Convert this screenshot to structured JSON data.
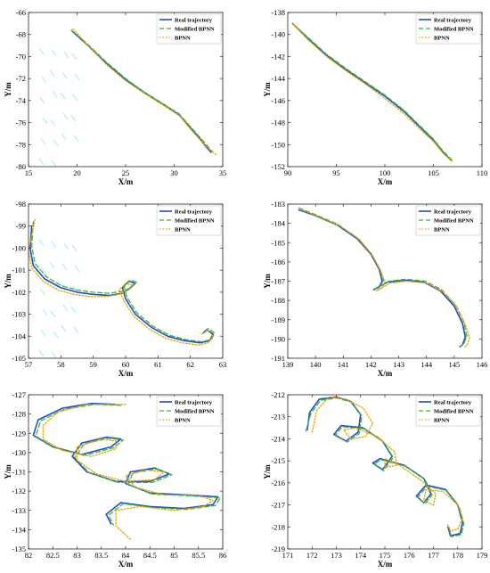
{
  "figure": {
    "legend_labels": [
      "Real trajectory",
      "Modified BPNN",
      "BPNN"
    ],
    "colors": {
      "real": "#1f4fbf",
      "modified": "#3cb43c",
      "bpnn": "#e8a000",
      "artifact": "#9ee8ff"
    }
  },
  "chart_data": [
    {
      "type": "line",
      "xlabel": "X/m",
      "ylabel": "Y/m",
      "xlim": [
        15,
        35
      ],
      "ylim": [
        -80,
        -66
      ],
      "xticks": [
        "15",
        "20",
        "25",
        "30",
        "35"
      ],
      "yticks": [
        "-80",
        "-78",
        "-76",
        "-74",
        "-72",
        "-70",
        "-68",
        "-66"
      ],
      "legend_position": "top-right",
      "grid": false,
      "series": [
        {
          "name": "Real trajectory",
          "x": [
            19.5,
            21,
            23,
            25,
            27,
            29,
            30.5,
            31.5,
            32.5,
            33.2,
            33.8
          ],
          "y": [
            -67.7,
            -68.9,
            -70.6,
            -72.1,
            -73.3,
            -74.4,
            -75.3,
            -76.3,
            -77.3,
            -78.1,
            -78.7
          ]
        },
        {
          "name": "Modified BPNN",
          "x": [
            19.4,
            21,
            23,
            25,
            27,
            29,
            30.5,
            31.5,
            32.5,
            33.3,
            33.9
          ],
          "y": [
            -67.6,
            -68.8,
            -70.5,
            -72.0,
            -73.3,
            -74.4,
            -75.2,
            -76.2,
            -77.2,
            -78.0,
            -78.6
          ]
        },
        {
          "name": "BPNN",
          "x": [
            19.6,
            21,
            23,
            25,
            27,
            29,
            30.6,
            31.6,
            32.6,
            33.5,
            34.3
          ],
          "y": [
            -67.5,
            -68.9,
            -70.7,
            -72.2,
            -73.4,
            -74.5,
            -75.4,
            -76.5,
            -77.5,
            -78.3,
            -78.9
          ]
        }
      ]
    },
    {
      "type": "line",
      "xlabel": "X/m",
      "ylabel": "Y/m",
      "xlim": [
        90,
        110
      ],
      "ylim": [
        -152,
        -138
      ],
      "xticks": [
        "90",
        "95",
        "100",
        "105",
        "110"
      ],
      "yticks": [
        "-152",
        "-150",
        "-148",
        "-146",
        "-144",
        "-142",
        "-140",
        "-138"
      ],
      "legend_position": "top-right",
      "grid": false,
      "series": [
        {
          "name": "Real trajectory",
          "x": [
            90.5,
            92,
            94,
            96,
            98,
            100,
            102,
            103.5,
            105,
            106,
            106.8
          ],
          "y": [
            -139.0,
            -140.3,
            -141.9,
            -143.2,
            -144.4,
            -145.6,
            -147.0,
            -148.3,
            -149.6,
            -150.7,
            -151.4
          ]
        },
        {
          "name": "Modified BPNN",
          "x": [
            90.5,
            92,
            94,
            96,
            98,
            100,
            102,
            103.5,
            105,
            106,
            106.9
          ],
          "y": [
            -139.0,
            -140.2,
            -141.8,
            -143.1,
            -144.3,
            -145.5,
            -146.9,
            -148.2,
            -149.5,
            -150.6,
            -151.4
          ]
        },
        {
          "name": "BPNN",
          "x": [
            90.6,
            92,
            94,
            96,
            98,
            100,
            102,
            103.5,
            105,
            106,
            106.9
          ],
          "y": [
            -139.1,
            -140.4,
            -142.0,
            -143.3,
            -144.5,
            -145.8,
            -147.2,
            -148.5,
            -149.7,
            -150.8,
            -151.5
          ]
        }
      ]
    },
    {
      "type": "line",
      "xlabel": "X/m",
      "ylabel": "Y/m",
      "xlim": [
        57,
        63
      ],
      "ylim": [
        -105,
        -98
      ],
      "xticks": [
        "57",
        "58",
        "59",
        "60",
        "61",
        "62",
        "63"
      ],
      "yticks": [
        "-105",
        "-104",
        "-103",
        "-102",
        "-101",
        "-100",
        "-99",
        "-98"
      ],
      "legend_position": "top-right",
      "grid": false,
      "series": [
        {
          "name": "Real trajectory",
          "x": [
            57.1,
            57.05,
            57.15,
            57.5,
            58.0,
            58.5,
            59.0,
            59.5,
            59.9,
            60.15,
            60.3,
            60.1,
            59.9,
            60.0,
            60.3,
            60.8,
            61.3,
            61.8,
            62.3,
            62.6,
            62.7,
            62.5,
            62.4
          ],
          "y": [
            -99.0,
            -100.0,
            -100.8,
            -101.4,
            -101.8,
            -102.0,
            -102.1,
            -102.15,
            -102.05,
            -101.8,
            -101.6,
            -101.5,
            -101.8,
            -102.3,
            -103.0,
            -103.6,
            -104.0,
            -104.2,
            -104.3,
            -104.2,
            -103.9,
            -103.7,
            -103.85
          ]
        },
        {
          "name": "Modified BPNN",
          "x": [
            57.15,
            57.1,
            57.2,
            57.55,
            58.0,
            58.5,
            59.0,
            59.5,
            59.95,
            60.2,
            60.35,
            60.15,
            59.95,
            60.05,
            60.35,
            60.85,
            61.35,
            61.85,
            62.35,
            62.65,
            62.75,
            62.55,
            62.45
          ],
          "y": [
            -98.8,
            -99.9,
            -100.7,
            -101.3,
            -101.7,
            -101.9,
            -102.0,
            -102.05,
            -101.95,
            -101.75,
            -101.55,
            -101.45,
            -101.75,
            -102.25,
            -102.95,
            -103.55,
            -103.95,
            -104.15,
            -104.25,
            -104.15,
            -103.85,
            -103.65,
            -103.8
          ]
        },
        {
          "name": "BPNN",
          "x": [
            57.2,
            57.0,
            57.1,
            57.45,
            57.9,
            58.4,
            58.9,
            59.4,
            59.8,
            60.1,
            60.25,
            60.0,
            59.8,
            59.95,
            60.25,
            60.75,
            61.25,
            61.75,
            62.25,
            62.55,
            62.7,
            62.55,
            62.35
          ],
          "y": [
            -98.7,
            -100.1,
            -100.9,
            -101.5,
            -101.9,
            -102.1,
            -102.2,
            -102.2,
            -102.1,
            -101.9,
            -101.7,
            -101.6,
            -101.9,
            -102.4,
            -103.1,
            -103.7,
            -104.1,
            -104.3,
            -104.4,
            -104.3,
            -104.0,
            -103.75,
            -103.9
          ]
        }
      ]
    },
    {
      "type": "line",
      "xlabel": "X/m",
      "ylabel": "Y/m",
      "xlim": [
        139,
        146
      ],
      "ylim": [
        -191,
        -183
      ],
      "xticks": [
        "139",
        "140",
        "141",
        "142",
        "143",
        "144",
        "145",
        "146"
      ],
      "yticks": [
        "-191",
        "-190",
        "-189",
        "-188",
        "-187",
        "-186",
        "-185",
        "-184",
        "-183"
      ],
      "legend_position": "top-right",
      "grid": false,
      "series": [
        {
          "name": "Real trajectory",
          "x": [
            139.4,
            140,
            140.8,
            141.5,
            142.0,
            142.3,
            142.4,
            142.3,
            142.1,
            142.2,
            142.6,
            143.2,
            143.9,
            144.5,
            145.0,
            145.3,
            145.4,
            145.3,
            145.2
          ],
          "y": [
            -183.3,
            -183.6,
            -184.1,
            -184.8,
            -185.6,
            -186.4,
            -187.0,
            -187.3,
            -187.45,
            -187.35,
            -187.05,
            -186.95,
            -187.05,
            -187.5,
            -188.3,
            -189.2,
            -189.9,
            -190.3,
            -190.4
          ]
        },
        {
          "name": "Modified BPNN",
          "x": [
            139.4,
            140,
            140.8,
            141.5,
            142.0,
            142.3,
            142.45,
            142.35,
            142.15,
            142.25,
            142.65,
            143.25,
            143.95,
            144.55,
            145.05,
            145.35,
            145.45,
            145.35,
            145.25
          ],
          "y": [
            -183.2,
            -183.55,
            -184.05,
            -184.75,
            -185.55,
            -186.35,
            -186.95,
            -187.25,
            -187.4,
            -187.3,
            -187.0,
            -186.9,
            -187.0,
            -187.45,
            -188.25,
            -189.15,
            -189.85,
            -190.25,
            -190.35
          ]
        },
        {
          "name": "BPNN",
          "x": [
            139.5,
            140.1,
            140.9,
            141.6,
            142.05,
            142.35,
            142.5,
            142.4,
            142.2,
            142.3,
            142.7,
            143.3,
            144.0,
            144.6,
            145.1,
            145.4,
            145.55,
            145.45,
            145.35
          ],
          "y": [
            -183.3,
            -183.65,
            -184.15,
            -184.85,
            -185.65,
            -186.45,
            -187.05,
            -187.35,
            -187.5,
            -187.4,
            -187.1,
            -187.0,
            -187.1,
            -187.55,
            -188.35,
            -189.25,
            -189.95,
            -190.35,
            -190.45
          ]
        }
      ]
    },
    {
      "type": "line",
      "xlabel": "X/m",
      "ylabel": "Y/m",
      "xlim": [
        82,
        86
      ],
      "ylim": [
        -135,
        -127
      ],
      "xticks": [
        "82",
        "82.5",
        "83",
        "83.5",
        "84",
        "84.5",
        "85",
        "85.5",
        "86"
      ],
      "yticks": [
        "-135",
        "-134",
        "-133",
        "-132",
        "-131",
        "-130",
        "-129",
        "-128",
        "-127"
      ],
      "legend_position": "top-right",
      "grid": false,
      "series": [
        {
          "name": "Real trajectory",
          "x": [
            83.8,
            83.3,
            82.7,
            82.2,
            82.1,
            82.5,
            83.1,
            83.7,
            83.9,
            83.6,
            83.1,
            82.9,
            83.2,
            83.8,
            84.5,
            84.9,
            84.6,
            84.1,
            84.0,
            84.5,
            85.3,
            85.9,
            85.8,
            85.2,
            84.5,
            83.9,
            83.6,
            83.7
          ],
          "y": [
            -127.5,
            -127.45,
            -127.7,
            -128.3,
            -129.1,
            -129.7,
            -130.1,
            -129.7,
            -129.3,
            -129.2,
            -129.5,
            -130.2,
            -131.0,
            -131.5,
            -131.5,
            -131.1,
            -130.8,
            -131.0,
            -131.6,
            -132.1,
            -132.2,
            -132.3,
            -132.7,
            -132.9,
            -132.8,
            -132.6,
            -133.2,
            -133.7
          ]
        },
        {
          "name": "Modified BPNN",
          "x": [
            83.9,
            83.35,
            82.75,
            82.25,
            82.15,
            82.55,
            83.15,
            83.75,
            83.95,
            83.65,
            83.15,
            82.95,
            83.25,
            83.85,
            84.55,
            84.95,
            84.65,
            84.15,
            84.05,
            84.55,
            85.35,
            85.95,
            85.85,
            85.25,
            84.55,
            83.95,
            83.65,
            83.75
          ],
          "y": [
            -127.55,
            -127.5,
            -127.75,
            -128.35,
            -129.15,
            -129.75,
            -130.15,
            -129.75,
            -129.35,
            -129.25,
            -129.55,
            -130.25,
            -131.05,
            -131.55,
            -131.55,
            -131.15,
            -130.85,
            -131.05,
            -131.65,
            -132.15,
            -132.25,
            -132.35,
            -132.75,
            -132.95,
            -132.85,
            -132.65,
            -133.25,
            -133.75
          ]
        },
        {
          "name": "BPNN",
          "x": [
            84.0,
            83.2,
            82.6,
            82.3,
            82.3,
            82.7,
            83.3,
            83.8,
            83.8,
            83.5,
            83.0,
            83.0,
            83.4,
            84.0,
            84.6,
            84.8,
            84.4,
            84.0,
            84.2,
            84.8,
            85.5,
            85.8,
            85.6,
            85.0,
            84.3,
            83.8,
            83.8,
            84.1
          ],
          "y": [
            -127.5,
            -127.5,
            -127.9,
            -128.6,
            -129.3,
            -129.9,
            -130.2,
            -129.8,
            -129.4,
            -129.3,
            -129.7,
            -130.4,
            -131.1,
            -131.5,
            -131.4,
            -131.0,
            -130.9,
            -131.2,
            -131.8,
            -132.2,
            -132.2,
            -132.5,
            -132.8,
            -133.0,
            -132.8,
            -133.0,
            -133.8,
            -134.5
          ]
        }
      ]
    },
    {
      "type": "line",
      "xlabel": "X/m",
      "ylabel": "Y/m",
      "xlim": [
        171,
        179
      ],
      "ylim": [
        -219,
        -212
      ],
      "xticks": [
        "171",
        "172",
        "173",
        "174",
        "175",
        "176",
        "177",
        "178",
        "179"
      ],
      "yticks": [
        "-219",
        "-218",
        "-217",
        "-216",
        "-215",
        "-214",
        "-213",
        "-212"
      ],
      "legend_position": "top-right",
      "grid": false,
      "series": [
        {
          "name": "Real trajectory",
          "x": [
            171.8,
            171.9,
            172.3,
            173.0,
            173.6,
            174.0,
            173.9,
            173.4,
            172.9,
            173.2,
            174.1,
            174.9,
            175.3,
            174.9,
            174.5,
            174.8,
            175.8,
            176.6,
            176.9,
            176.6,
            176.3,
            176.7,
            177.5,
            178.0,
            178.2,
            178.1,
            177.7,
            177.6
          ],
          "y": [
            -213.6,
            -212.8,
            -212.2,
            -212.1,
            -212.3,
            -212.9,
            -213.7,
            -214.1,
            -213.8,
            -213.4,
            -213.5,
            -214.1,
            -214.8,
            -215.4,
            -215.1,
            -214.9,
            -215.2,
            -215.8,
            -216.5,
            -216.9,
            -216.6,
            -216.1,
            -216.3,
            -217.0,
            -217.8,
            -218.3,
            -218.4,
            -218.0
          ]
        },
        {
          "name": "Modified BPNN",
          "x": [
            171.75,
            171.95,
            172.35,
            173.05,
            173.65,
            174.05,
            173.95,
            173.45,
            172.95,
            173.25,
            174.15,
            174.95,
            175.35,
            174.95,
            174.55,
            174.85,
            175.85,
            176.65,
            176.95,
            176.65,
            176.35,
            176.75,
            177.55,
            178.05,
            178.25,
            178.15,
            177.75,
            177.65
          ],
          "y": [
            -213.65,
            -212.85,
            -212.25,
            -212.15,
            -212.35,
            -212.95,
            -213.75,
            -214.15,
            -213.85,
            -213.45,
            -213.55,
            -214.15,
            -214.85,
            -215.45,
            -215.15,
            -214.95,
            -215.25,
            -215.85,
            -216.55,
            -216.95,
            -216.65,
            -216.15,
            -216.35,
            -217.05,
            -217.85,
            -218.35,
            -218.45,
            -218.05
          ]
        },
        {
          "name": "BPNN",
          "x": [
            172.0,
            172.2,
            172.7,
            173.4,
            174.1,
            174.5,
            174.2,
            173.6,
            173.3,
            173.8,
            174.7,
            175.4,
            175.5,
            175.0,
            175.0,
            175.6,
            176.5,
            177.1,
            177.0,
            176.6,
            176.7,
            177.4,
            178.0,
            178.2,
            178.0,
            177.7,
            177.6
          ],
          "y": [
            -213.7,
            -212.7,
            -212.1,
            -212.2,
            -212.6,
            -213.3,
            -213.9,
            -214.0,
            -213.6,
            -213.5,
            -213.9,
            -214.6,
            -215.2,
            -215.3,
            -214.9,
            -215.2,
            -215.9,
            -216.5,
            -217.0,
            -216.8,
            -216.3,
            -216.4,
            -217.0,
            -217.6,
            -218.1,
            -218.2,
            -217.9
          ]
        }
      ]
    }
  ]
}
